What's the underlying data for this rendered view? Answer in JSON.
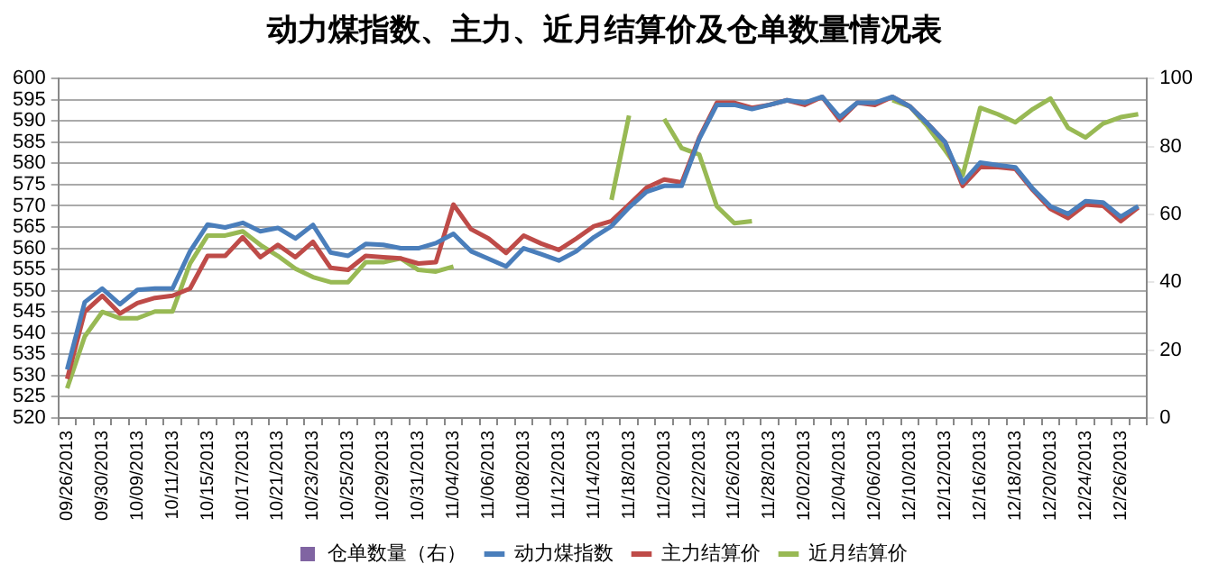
{
  "chart_data": {
    "type": "line",
    "title": "动力煤指数、主力、近月结算价及仓单数量情况表",
    "categories": [
      "09/26/2013",
      null,
      "09/30/2013",
      null,
      "10/09/2013",
      null,
      "10/11/2013",
      null,
      "10/15/2013",
      null,
      "10/17/2013",
      null,
      "10/21/2013",
      null,
      "10/23/2013",
      null,
      "10/25/2013",
      null,
      "10/29/2013",
      null,
      "10/31/2013",
      null,
      "11/04/2013",
      null,
      "11/06/2013",
      null,
      "11/08/2013",
      null,
      "11/12/2013",
      null,
      "11/14/2013",
      null,
      "11/18/2013",
      null,
      "11/20/2013",
      null,
      "11/22/2013",
      null,
      "11/26/2013",
      null,
      "11/28/2013",
      null,
      "12/02/2013",
      null,
      "12/04/2013",
      null,
      "12/06/2013",
      null,
      "12/10/2013",
      null,
      "12/12/2013",
      null,
      "12/16/2013",
      null,
      "12/18/2013",
      null,
      "12/20/2013",
      null,
      "12/24/2013",
      null,
      "12/26/2013",
      null
    ],
    "series": [
      {
        "name": "仓单数量（右）",
        "type": "bar",
        "axis": "y2",
        "color": "#8064a2",
        "values": [
          null,
          null,
          null,
          null,
          null,
          null,
          null,
          null,
          null,
          null,
          null,
          null,
          null,
          null,
          null,
          null,
          null,
          null,
          null,
          null,
          null,
          null,
          null,
          null,
          null,
          null,
          null,
          null,
          null,
          null,
          null,
          null,
          null,
          null,
          null,
          null,
          null,
          null,
          null,
          null,
          null,
          null,
          null,
          null,
          null,
          null,
          null,
          null,
          null,
          null,
          null,
          null,
          null,
          null,
          null,
          null,
          null,
          null,
          null,
          null,
          null,
          null
        ]
      },
      {
        "name": "动力煤指数",
        "color": "#4a7ebb",
        "values": [
          531.4,
          547.3,
          550.5,
          546.8,
          550.2,
          550.5,
          550.5,
          559.3,
          565.6,
          564.9,
          566,
          564,
          564.8,
          562.3,
          565.5,
          559,
          558.2,
          561,
          560.8,
          560,
          560,
          561.2,
          563.4,
          559.3,
          557.5,
          555.7,
          560,
          558.6,
          557.1,
          559.3,
          562.6,
          565.2,
          569.6,
          573.3,
          574.7,
          574.7,
          585.8,
          593.8,
          593.8,
          592.8,
          593.8,
          594.9,
          594.3,
          595.7,
          590.9,
          594.3,
          594.3,
          595.7,
          593.4,
          589.4,
          585,
          575.5,
          580.2,
          579.6,
          579.1,
          574,
          569.9,
          568.1,
          571.1,
          570.8,
          567.4,
          569.9
        ]
      },
      {
        "name": "主力结算价",
        "color": "#be4b48",
        "values": [
          529.2,
          545,
          548.8,
          544.6,
          547.1,
          548.3,
          548.8,
          550.5,
          558.2,
          558.2,
          562.6,
          557.9,
          560.8,
          557.9,
          561.5,
          555.4,
          554.9,
          558.2,
          557.9,
          557.6,
          556.4,
          556.7,
          570.3,
          564.5,
          562.3,
          558.9,
          563,
          561.1,
          559.6,
          562.3,
          565.2,
          566.4,
          570.3,
          574.3,
          576.2,
          575.5,
          586.1,
          594.3,
          594.3,
          593.1,
          593.8,
          594.9,
          593.8,
          595.7,
          590.2,
          594.3,
          593.8,
          595.7,
          593.4,
          589.4,
          585,
          574.7,
          579.1,
          579.1,
          578.7,
          573.7,
          569.3,
          567.1,
          570.3,
          570,
          566.4,
          569.6
        ]
      },
      {
        "name": "近月结算价",
        "color": "#98b954",
        "values": [
          527,
          539.2,
          545,
          543.5,
          543.5,
          545.1,
          545.1,
          556.4,
          563,
          563,
          564,
          560.8,
          558.2,
          555.2,
          553.2,
          552,
          552,
          556.7,
          556.7,
          557.6,
          554.9,
          554.5,
          555.7,
          null,
          null,
          null,
          null,
          null,
          null,
          null,
          null,
          571.4,
          591.3,
          null,
          590.5,
          583.6,
          582.1,
          569.9,
          565.9,
          566.4,
          null,
          null,
          null,
          null,
          null,
          null,
          null,
          594.9,
          593.4,
          588.7,
          583.1,
          577.2,
          593.1,
          591.6,
          589.7,
          592.8,
          595.3,
          588.4,
          586.1,
          589.4,
          590.9,
          591.6
        ]
      }
    ],
    "ylim": [
      520,
      600
    ],
    "yticks": [
      520,
      525,
      530,
      535,
      540,
      545,
      550,
      555,
      560,
      565,
      570,
      575,
      580,
      585,
      590,
      595,
      600
    ],
    "y2lim": [
      0,
      100
    ],
    "y2ticks": [
      0,
      20,
      40,
      60,
      80,
      100
    ],
    "grid": "y",
    "legend": "bottom",
    "marker": "none",
    "line_style": "solid"
  }
}
